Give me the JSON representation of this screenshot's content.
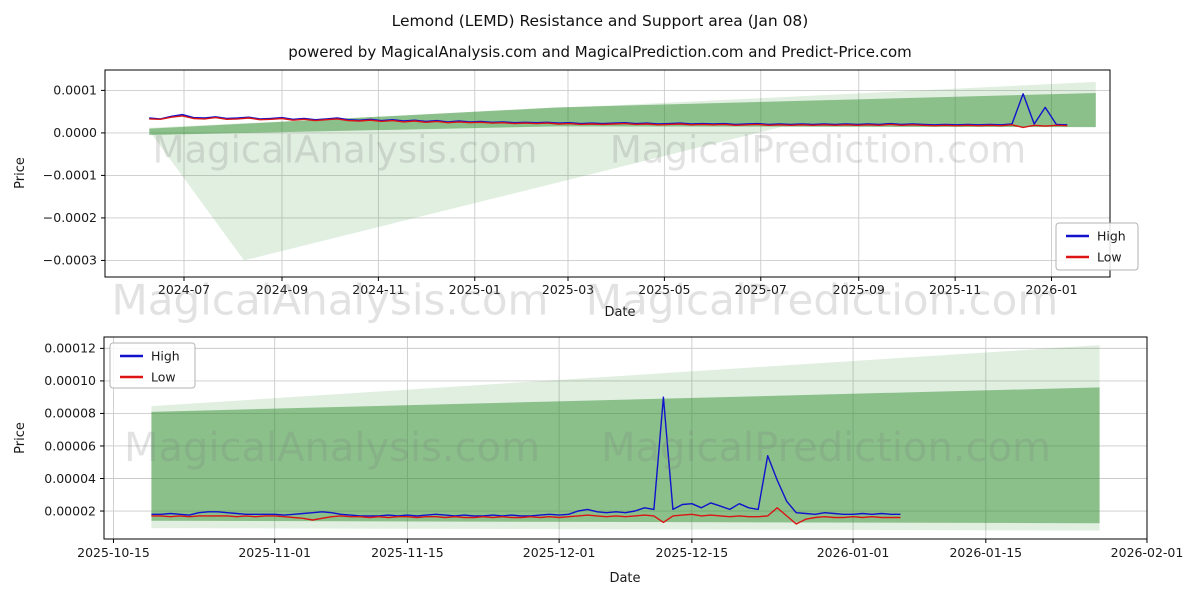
{
  "figure": {
    "title": "Lemond (LEMD) Resistance and Support area (Jan 08)",
    "subtitle": "powered by MagicalAnalysis.com and MagicalPrediction.com and Predict-Price.com"
  },
  "watermarks": [
    "MagicalAnalysis.com",
    "MagicalPrediction.com"
  ],
  "colors": {
    "high_line": "#1212cc",
    "low_line": "#dc1414",
    "band_green": "#2e8b2e",
    "grid": "#cbcbcb",
    "spine": "#000000"
  },
  "chart_data": [
    {
      "id": "top",
      "type": "line",
      "xlabel": "Date",
      "ylabel": "Price",
      "grid": true,
      "xlim": [
        "2024-05-12",
        "2026-02-07"
      ],
      "ylim": [
        -0.000339,
        0.000148
      ],
      "x_ticks": [
        {
          "date": "2024-07-01",
          "label": "2024-07"
        },
        {
          "date": "2024-09-01",
          "label": "2024-09"
        },
        {
          "date": "2024-11-01",
          "label": "2024-11"
        },
        {
          "date": "2025-01-01",
          "label": "2025-01"
        },
        {
          "date": "2025-03-01",
          "label": "2025-03"
        },
        {
          "date": "2025-05-01",
          "label": "2025-05"
        },
        {
          "date": "2025-07-01",
          "label": "2025-07"
        },
        {
          "date": "2025-09-01",
          "label": "2025-09"
        },
        {
          "date": "2025-11-01",
          "label": "2025-11"
        },
        {
          "date": "2026-01-01",
          "label": "2026-01"
        }
      ],
      "y_ticks": [
        {
          "value": 0.0001,
          "label": "0.0001"
        },
        {
          "value": 0.0,
          "label": "0.0000"
        },
        {
          "value": -0.0001,
          "label": "−0.0001"
        },
        {
          "value": -0.0002,
          "label": "−0.0002"
        },
        {
          "value": -0.0003,
          "label": "−0.0003"
        }
      ],
      "legend": {
        "position": "lower-right",
        "entries": [
          {
            "label": "High",
            "color": "#1212cc"
          },
          {
            "label": "Low",
            "color": "#dc1414"
          }
        ]
      },
      "bands": [
        {
          "name": "support-area-outer",
          "color": "#2e8b2e",
          "opacity": 0.14,
          "upper": [
            [
              "2024-06-09",
              1.2e-05
            ],
            [
              "2026-01-29",
              0.00012
            ]
          ],
          "lower": [
            [
              "2024-06-09",
              5e-06
            ],
            [
              "2024-08-08",
              -0.0003
            ],
            [
              "2025-07-15",
              1.5e-05
            ],
            [
              "2026-01-29",
              1.35e-05
            ]
          ]
        },
        {
          "name": "resistance-area-inner",
          "color": "#2e8b2e",
          "opacity": 0.48,
          "upper": [
            [
              "2024-06-09",
              1e-05
            ],
            [
              "2025-02-22",
              6e-05
            ],
            [
              "2026-01-29",
              9.4e-05
            ]
          ],
          "lower": [
            [
              "2024-06-09",
              -5e-06
            ],
            [
              "2025-02-22",
              1.55e-05
            ],
            [
              "2026-01-29",
              1.35e-05
            ]
          ]
        }
      ],
      "series": [
        {
          "name": "High",
          "color": "#1212cc",
          "start": "2024-06-09",
          "step_days": 7,
          "values_scale": 1e-05,
          "values": [
            3.5,
            3.3,
            3.9,
            4.3,
            3.6,
            3.5,
            3.8,
            3.4,
            3.5,
            3.7,
            3.3,
            3.4,
            3.6,
            3.2,
            3.4,
            3.1,
            3.3,
            3.5,
            3.1,
            3.0,
            3.2,
            2.9,
            3.1,
            2.8,
            3.0,
            2.7,
            2.9,
            2.6,
            2.8,
            2.6,
            2.7,
            2.5,
            2.6,
            2.4,
            2.5,
            2.4,
            2.5,
            2.3,
            2.4,
            2.2,
            2.3,
            2.2,
            2.3,
            2.4,
            2.2,
            2.3,
            2.1,
            2.2,
            2.3,
            2.1,
            2.2,
            2.1,
            2.2,
            2.0,
            2.1,
            2.2,
            2.0,
            2.1,
            2.0,
            2.1,
            2.0,
            2.1,
            2.0,
            2.1,
            2.0,
            2.1,
            2.0,
            2.2,
            2.0,
            2.1,
            2.0,
            1.9,
            2.0,
            1.9,
            2.0,
            1.9,
            2.0,
            1.9,
            2.1,
            9.2,
            2.1,
            6.0,
            2.0,
            1.9
          ]
        },
        {
          "name": "Low",
          "color": "#dc1414",
          "start": "2024-06-09",
          "step_days": 7,
          "values_scale": 1e-05,
          "values": [
            3.3,
            3.2,
            3.7,
            4.0,
            3.4,
            3.3,
            3.6,
            3.2,
            3.3,
            3.5,
            3.1,
            3.2,
            3.4,
            3.0,
            3.2,
            2.9,
            3.1,
            3.3,
            2.9,
            2.8,
            3.0,
            2.7,
            2.9,
            2.6,
            2.8,
            2.5,
            2.7,
            2.4,
            2.6,
            2.4,
            2.5,
            2.3,
            2.4,
            2.2,
            2.3,
            2.2,
            2.3,
            2.1,
            2.2,
            2.0,
            2.1,
            2.0,
            2.1,
            2.2,
            2.0,
            2.1,
            1.9,
            2.0,
            2.1,
            1.9,
            2.0,
            1.9,
            2.0,
            1.8,
            1.9,
            2.0,
            1.8,
            1.9,
            1.8,
            1.9,
            1.8,
            1.9,
            1.8,
            1.9,
            1.8,
            1.9,
            1.8,
            2.0,
            1.8,
            1.9,
            1.8,
            1.7,
            1.8,
            1.7,
            1.8,
            1.7,
            1.8,
            1.7,
            1.9,
            1.3,
            1.8,
            1.6,
            1.8,
            1.7
          ]
        }
      ]
    },
    {
      "id": "bottom",
      "type": "line",
      "xlabel": "Date",
      "ylabel": "Price",
      "grid": true,
      "xlim": [
        "2025-10-14",
        "2026-02-01"
      ],
      "ylim": [
        2.8e-06,
        0.000127
      ],
      "x_ticks": [
        {
          "date": "2025-10-15",
          "label": "2025-10-15"
        },
        {
          "date": "2025-11-01",
          "label": "2025-11-01"
        },
        {
          "date": "2025-11-15",
          "label": "2025-11-15"
        },
        {
          "date": "2025-12-01",
          "label": "2025-12-01"
        },
        {
          "date": "2025-12-15",
          "label": "2025-12-15"
        },
        {
          "date": "2026-01-01",
          "label": "2026-01-01"
        },
        {
          "date": "2026-01-15",
          "label": "2026-01-15"
        },
        {
          "date": "2026-02-01",
          "label": "2026-02-01"
        }
      ],
      "y_ticks": [
        {
          "value": 2e-05,
          "label": "0.00002"
        },
        {
          "value": 4e-05,
          "label": "0.00004"
        },
        {
          "value": 6e-05,
          "label": "0.00006"
        },
        {
          "value": 8e-05,
          "label": "0.00008"
        },
        {
          "value": 0.0001,
          "label": "0.00010"
        },
        {
          "value": 0.00012,
          "label": "0.00012"
        }
      ],
      "legend": {
        "position": "upper-left",
        "entries": [
          {
            "label": "High",
            "color": "#1212cc"
          },
          {
            "label": "Low",
            "color": "#dc1414"
          }
        ]
      },
      "bands": [
        {
          "name": "support-area-outer",
          "color": "#2e8b2e",
          "opacity": 0.14,
          "upper": [
            [
              "2025-10-19",
              8.45e-05
            ],
            [
              "2026-01-27",
              0.000122
            ]
          ],
          "lower": [
            [
              "2025-10-19",
              9.5e-06
            ],
            [
              "2026-01-27",
              8e-06
            ]
          ]
        },
        {
          "name": "resistance-area-inner",
          "color": "#2e8b2e",
          "opacity": 0.48,
          "upper": [
            [
              "2025-10-19",
              8.1e-05
            ],
            [
              "2026-01-27",
              9.6e-05
            ]
          ],
          "lower": [
            [
              "2025-10-19",
              1.4e-05
            ],
            [
              "2026-01-27",
              1.25e-05
            ]
          ]
        }
      ],
      "series": [
        {
          "name": "High",
          "color": "#1212cc",
          "start": "2025-10-19",
          "step_days": 1,
          "values_scale": 1e-05,
          "values": [
            1.8,
            1.8,
            1.85,
            1.8,
            1.75,
            1.9,
            1.95,
            1.95,
            1.9,
            1.85,
            1.8,
            1.8,
            1.8,
            1.8,
            1.75,
            1.8,
            1.85,
            1.9,
            1.95,
            1.9,
            1.8,
            1.75,
            1.7,
            1.7,
            1.7,
            1.75,
            1.7,
            1.75,
            1.7,
            1.75,
            1.8,
            1.75,
            1.7,
            1.75,
            1.7,
            1.7,
            1.75,
            1.7,
            1.75,
            1.7,
            1.7,
            1.75,
            1.8,
            1.75,
            1.8,
            2.0,
            2.1,
            1.95,
            1.9,
            1.95,
            1.9,
            2.0,
            2.2,
            2.1,
            9.0,
            2.1,
            2.4,
            2.45,
            2.2,
            2.5,
            2.3,
            2.1,
            2.45,
            2.2,
            2.1,
            5.4,
            3.9,
            2.6,
            1.9,
            1.85,
            1.8,
            1.9,
            1.85,
            1.8,
            1.8,
            1.85,
            1.8,
            1.85,
            1.8,
            1.8
          ]
        },
        {
          "name": "Low",
          "color": "#dc1414",
          "start": "2025-10-19",
          "step_days": 1,
          "values_scale": 1e-05,
          "values": [
            1.7,
            1.7,
            1.65,
            1.7,
            1.65,
            1.7,
            1.7,
            1.7,
            1.7,
            1.65,
            1.7,
            1.65,
            1.7,
            1.7,
            1.65,
            1.6,
            1.55,
            1.45,
            1.55,
            1.65,
            1.7,
            1.65,
            1.65,
            1.6,
            1.65,
            1.6,
            1.65,
            1.65,
            1.6,
            1.65,
            1.65,
            1.6,
            1.65,
            1.6,
            1.6,
            1.65,
            1.6,
            1.65,
            1.6,
            1.6,
            1.65,
            1.6,
            1.65,
            1.6,
            1.65,
            1.7,
            1.75,
            1.7,
            1.65,
            1.7,
            1.65,
            1.7,
            1.75,
            1.7,
            1.3,
            1.7,
            1.75,
            1.8,
            1.7,
            1.75,
            1.7,
            1.65,
            1.7,
            1.65,
            1.65,
            1.7,
            2.2,
            1.7,
            1.2,
            1.5,
            1.6,
            1.65,
            1.6,
            1.6,
            1.65,
            1.6,
            1.65,
            1.6,
            1.6,
            1.6
          ]
        }
      ]
    }
  ]
}
